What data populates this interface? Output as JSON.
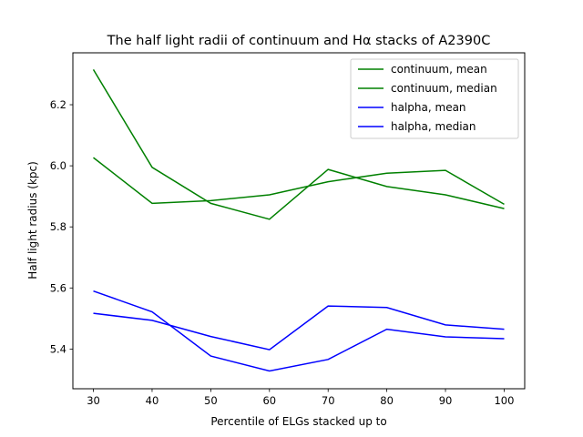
{
  "chart_data": {
    "type": "line",
    "title": "The half light radii of continuum and Hα stacks of A2390C",
    "xlabel": "Percentile of ELGs stacked up to",
    "ylabel": "Half light radius (kpc)",
    "x": [
      30,
      40,
      50,
      60,
      70,
      80,
      90,
      100
    ],
    "xlim": [
      26.5,
      103.5
    ],
    "ylim": [
      5.27,
      6.37
    ],
    "xticks": [
      30,
      40,
      50,
      60,
      70,
      80,
      90,
      100
    ],
    "yticks": [
      5.4,
      5.6,
      5.8,
      6.0,
      6.2
    ],
    "ytick_labels": [
      "5.4",
      "5.6",
      "5.8",
      "6.0",
      "6.2"
    ],
    "grid": false,
    "legend_position": "top-right",
    "series": [
      {
        "name": "continuum, mean",
        "color": "#008000",
        "values": [
          6.315,
          5.995,
          5.877,
          5.825,
          5.988,
          5.932,
          5.905,
          5.86
        ]
      },
      {
        "name": "continuum, median",
        "color": "#008000",
        "values": [
          6.027,
          5.877,
          5.886,
          5.905,
          5.948,
          5.976,
          5.985,
          5.874
        ]
      },
      {
        "name": "halpha, mean",
        "color": "#0000ff",
        "values": [
          5.59,
          5.522,
          5.377,
          5.328,
          5.366,
          5.465,
          5.44,
          5.434
        ]
      },
      {
        "name": "halpha, median",
        "color": "#0000ff",
        "values": [
          5.517,
          5.494,
          5.441,
          5.398,
          5.541,
          5.536,
          5.479,
          5.465
        ]
      }
    ]
  }
}
